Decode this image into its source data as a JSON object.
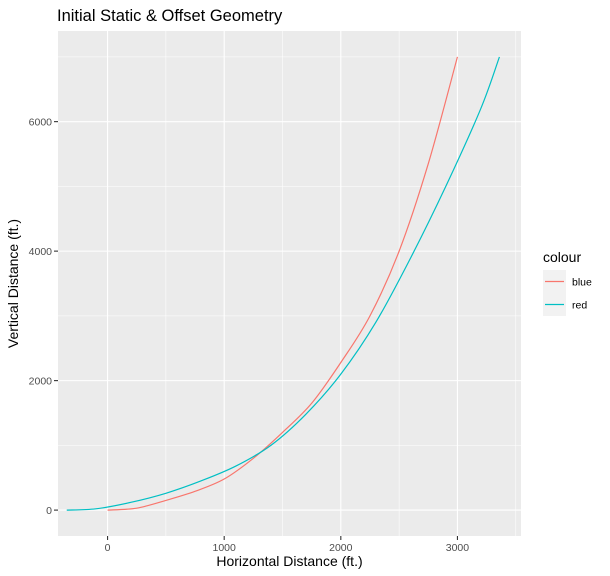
{
  "chart_data": {
    "type": "line",
    "title": "Initial Static & Offset Geometry",
    "xlabel": "Horizontal Distance (ft.)",
    "ylabel": "Vertical Distance (ft.)",
    "xlim": [
      -425,
      3545
    ],
    "ylim": [
      -400,
      7400
    ],
    "x_ticks": [
      0,
      1000,
      2000,
      3000
    ],
    "y_ticks": [
      0,
      2000,
      4000,
      6000
    ],
    "x_tick_labels": [
      "0",
      "1000",
      "2000",
      "3000"
    ],
    "y_tick_labels": [
      "0",
      "2000",
      "4000",
      "6000"
    ],
    "grid": true,
    "legend": {
      "title": "colour",
      "position": "right"
    },
    "series": [
      {
        "name": "blue",
        "color": "#F8766D",
        "x": [
          0,
          250,
          500,
          750,
          1000,
          1250,
          1500,
          1750,
          2000,
          2250,
          2500,
          2750,
          3000
        ],
        "y": [
          0,
          30,
          150,
          290,
          480,
          800,
          1200,
          1650,
          2280,
          3000,
          4000,
          5350,
          7000
        ]
      },
      {
        "name": "red",
        "color": "#00BFC4",
        "x": [
          -350,
          -100,
          200,
          500,
          800,
          1100,
          1400,
          1700,
          2000,
          2300,
          2600,
          2900,
          3200,
          3360
        ],
        "y": [
          0,
          20,
          120,
          260,
          450,
          680,
          1000,
          1480,
          2100,
          2900,
          3900,
          5000,
          6200,
          7000
        ]
      }
    ]
  }
}
